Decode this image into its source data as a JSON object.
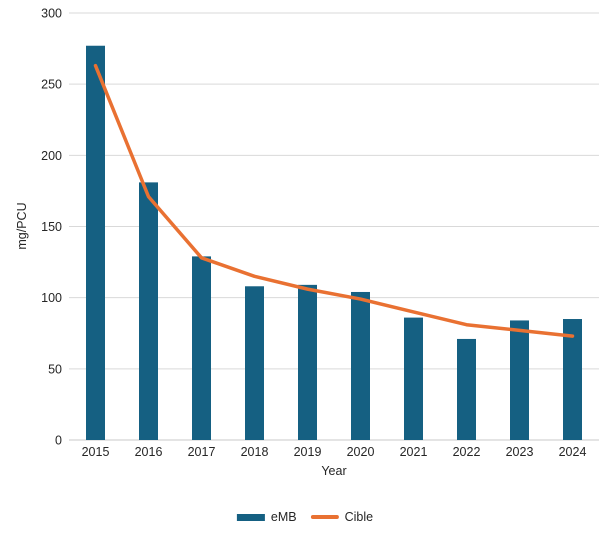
{
  "chart_data": {
    "type": "bar",
    "title": "",
    "categories": [
      "2015",
      "2016",
      "2017",
      "2018",
      "2019",
      "2020",
      "2021",
      "2022",
      "2023",
      "2024"
    ],
    "series": [
      {
        "name": "eMB",
        "type": "bar",
        "color": "#156082",
        "values": [
          277,
          181,
          129,
          108,
          109,
          104,
          86,
          71,
          84,
          85
        ]
      },
      {
        "name": "Cible",
        "type": "line",
        "color": "#E97132",
        "values": [
          263,
          171,
          128,
          115,
          106,
          99,
          90,
          81,
          77,
          73
        ]
      }
    ],
    "xlabel": "Year",
    "ylabel": "mg/PCU",
    "ylim": [
      0,
      300
    ],
    "yticks": [
      0,
      50,
      100,
      150,
      200,
      250,
      300
    ],
    "grid": true,
    "legend_position": "bottom",
    "gridline_color": "#D9D9D9",
    "axisline_color": "#C9C9C9",
    "background_color": "#FFFFFF"
  }
}
